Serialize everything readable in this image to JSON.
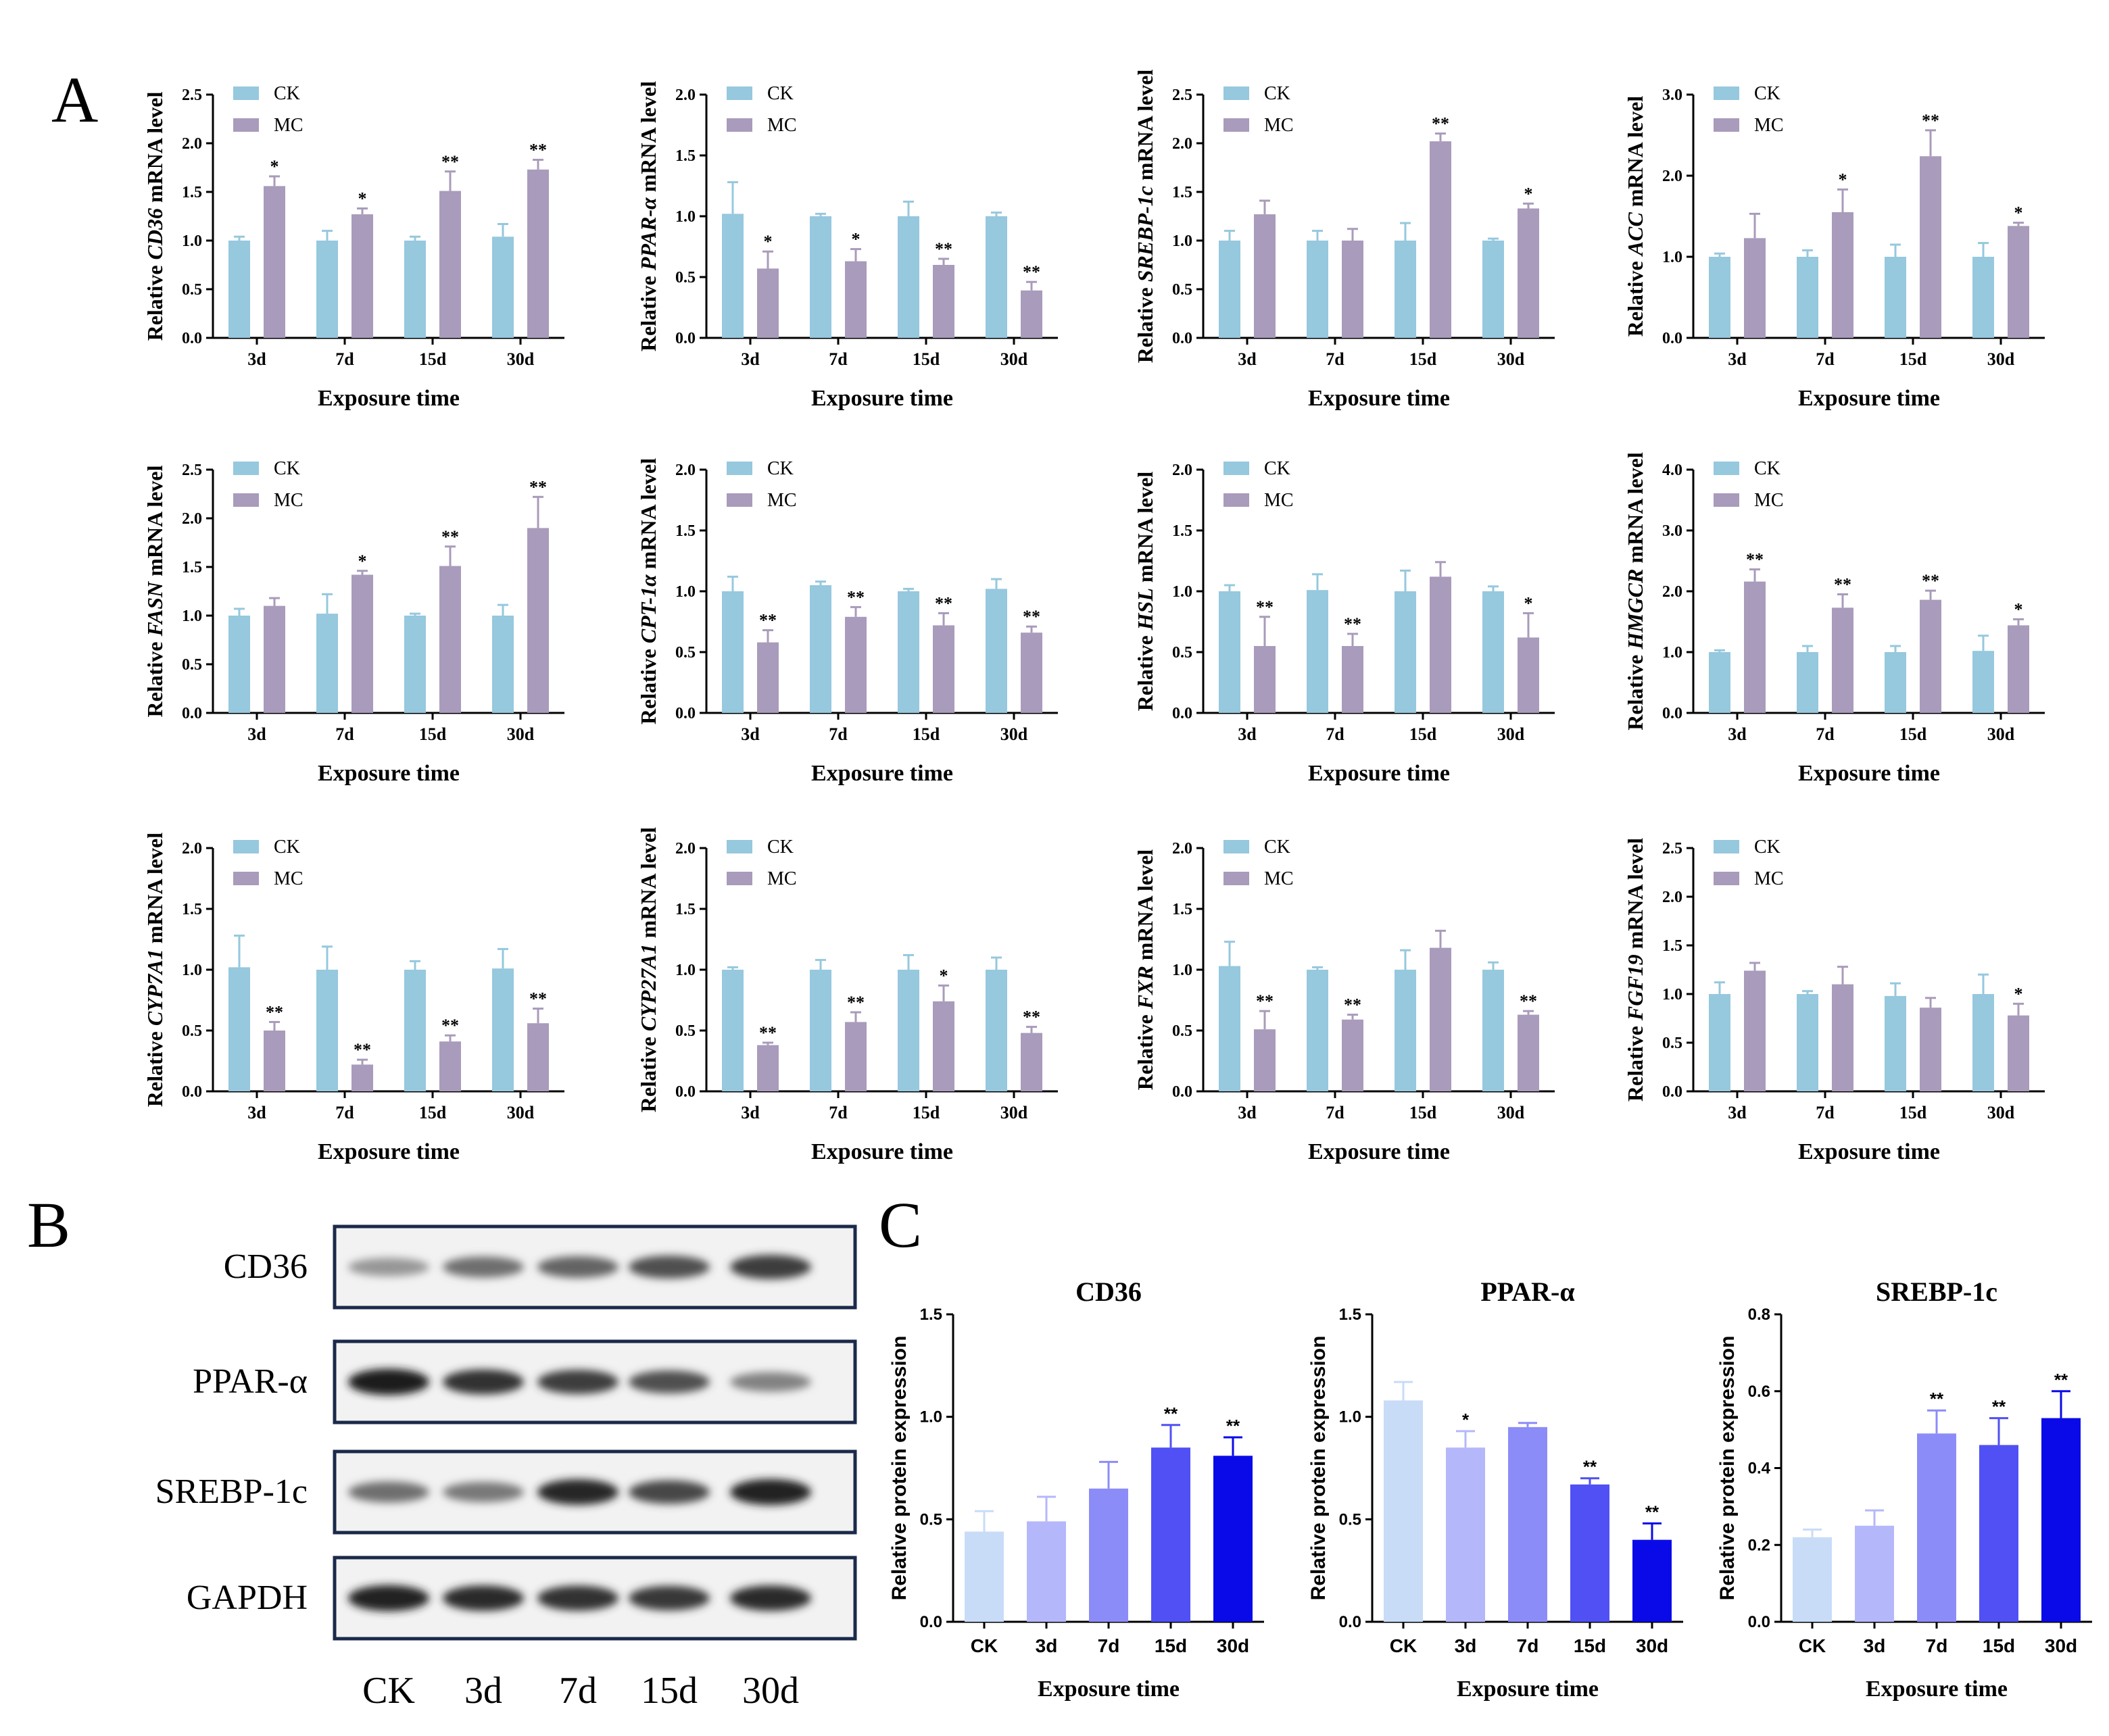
{
  "panel_labels": {
    "a": "A",
    "b": "B",
    "c": "C"
  },
  "colors": {
    "ck": "#96c8de",
    "mc": "#a99bbb",
    "axis": "#000000"
  },
  "common": {
    "xlabel": "Exposure time",
    "legend": [
      "CK",
      "MC"
    ],
    "ylabel_prefix": "Relative ",
    "ylabel_suffix": " mRNA level"
  },
  "chart_data": [
    {
      "type": "bar",
      "gene": "CD36",
      "categories": [
        "3d",
        "7d",
        "15d",
        "30d"
      ],
      "ylim": [
        0,
        2.5
      ],
      "ticks": [
        "0.0",
        "0.5",
        "1.0",
        "1.5",
        "2.0",
        "2.5"
      ],
      "series": [
        {
          "name": "CK",
          "values": [
            1.0,
            1.0,
            1.0,
            1.04
          ],
          "errors": [
            0.04,
            0.1,
            0.04,
            0.13
          ]
        },
        {
          "name": "MC",
          "values": [
            1.56,
            1.27,
            1.51,
            1.73
          ],
          "errors": [
            0.1,
            0.06,
            0.2,
            0.1
          ]
        }
      ],
      "annotations": [
        "*",
        "*",
        "**",
        "**"
      ]
    },
    {
      "type": "bar",
      "gene": "PPAR-α",
      "categories": [
        "3d",
        "7d",
        "15d",
        "30d"
      ],
      "ylim": [
        0,
        2.0
      ],
      "ticks": [
        "0.0",
        "0.5",
        "1.0",
        "1.5",
        "2.0"
      ],
      "series": [
        {
          "name": "CK",
          "values": [
            1.02,
            1.0,
            1.0,
            1.0
          ],
          "errors": [
            0.26,
            0.02,
            0.12,
            0.03
          ]
        },
        {
          "name": "MC",
          "values": [
            0.57,
            0.63,
            0.6,
            0.39
          ],
          "errors": [
            0.14,
            0.1,
            0.05,
            0.07
          ]
        }
      ],
      "annotations": [
        "*",
        "*",
        "**",
        "**"
      ]
    },
    {
      "type": "bar",
      "gene": "SREBP-1c",
      "categories": [
        "3d",
        "7d",
        "15d",
        "30d"
      ],
      "ylim": [
        0,
        2.5
      ],
      "ticks": [
        "0.0",
        "0.5",
        "1.0",
        "1.5",
        "2.0",
        "2.5"
      ],
      "series": [
        {
          "name": "CK",
          "values": [
            1.0,
            1.0,
            1.0,
            1.0
          ],
          "errors": [
            0.1,
            0.1,
            0.18,
            0.02
          ]
        },
        {
          "name": "MC",
          "values": [
            1.27,
            1.0,
            2.02,
            1.33
          ],
          "errors": [
            0.14,
            0.12,
            0.08,
            0.05
          ]
        }
      ],
      "annotations": [
        "",
        "",
        "**",
        "*"
      ]
    },
    {
      "type": "bar",
      "gene": "ACC",
      "categories": [
        "3d",
        "7d",
        "15d",
        "30d"
      ],
      "ylim": [
        0,
        3.0
      ],
      "ticks": [
        "0.0",
        "1.0",
        "2.0",
        "3.0"
      ],
      "series": [
        {
          "name": "CK",
          "values": [
            1.0,
            1.0,
            1.0,
            1.0
          ],
          "errors": [
            0.04,
            0.08,
            0.15,
            0.17
          ]
        },
        {
          "name": "MC",
          "values": [
            1.23,
            1.55,
            2.24,
            1.38
          ],
          "errors": [
            0.3,
            0.28,
            0.32,
            0.04
          ]
        }
      ],
      "annotations": [
        "",
        "*",
        "**",
        "*"
      ]
    },
    {
      "type": "bar",
      "gene": "FASN",
      "categories": [
        "3d",
        "7d",
        "15d",
        "30d"
      ],
      "ylim": [
        0,
        2.5
      ],
      "ticks": [
        "0.0",
        "0.5",
        "1.0",
        "1.5",
        "2.0",
        "2.5"
      ],
      "series": [
        {
          "name": "CK",
          "values": [
            1.0,
            1.02,
            1.0,
            1.0
          ],
          "errors": [
            0.07,
            0.2,
            0.02,
            0.11
          ]
        },
        {
          "name": "MC",
          "values": [
            1.1,
            1.42,
            1.51,
            1.9
          ],
          "errors": [
            0.08,
            0.04,
            0.2,
            0.32
          ]
        }
      ],
      "annotations": [
        "",
        "*",
        "**",
        "**"
      ]
    },
    {
      "type": "bar",
      "gene": "CPT-1α",
      "categories": [
        "3d",
        "7d",
        "15d",
        "30d"
      ],
      "ylim": [
        0,
        2.0
      ],
      "ticks": [
        "0.0",
        "0.5",
        "1.0",
        "1.5",
        "2.0"
      ],
      "series": [
        {
          "name": "CK",
          "values": [
            1.0,
            1.05,
            1.0,
            1.02
          ],
          "errors": [
            0.12,
            0.03,
            0.02,
            0.08
          ]
        },
        {
          "name": "MC",
          "values": [
            0.58,
            0.79,
            0.72,
            0.66
          ],
          "errors": [
            0.1,
            0.08,
            0.1,
            0.05
          ]
        }
      ],
      "annotations": [
        "**",
        "**",
        "**",
        "**"
      ]
    },
    {
      "type": "bar",
      "gene": "HSL",
      "categories": [
        "3d",
        "7d",
        "15d",
        "30d"
      ],
      "ylim": [
        0,
        2.0
      ],
      "ticks": [
        "0.0",
        "0.5",
        "1.0",
        "1.5",
        "2.0"
      ],
      "series": [
        {
          "name": "CK",
          "values": [
            1.0,
            1.01,
            1.0,
            1.0
          ],
          "errors": [
            0.05,
            0.13,
            0.17,
            0.04
          ]
        },
        {
          "name": "MC",
          "values": [
            0.55,
            0.55,
            1.12,
            0.62
          ],
          "errors": [
            0.24,
            0.1,
            0.12,
            0.2
          ]
        }
      ],
      "annotations": [
        "**",
        "**",
        "",
        "*"
      ]
    },
    {
      "type": "bar",
      "gene": "HMGCR",
      "categories": [
        "3d",
        "7d",
        "15d",
        "30d"
      ],
      "ylim": [
        0,
        4.0
      ],
      "ticks": [
        "0.0",
        "1.0",
        "2.0",
        "3.0",
        "4.0"
      ],
      "series": [
        {
          "name": "CK",
          "values": [
            1.0,
            1.0,
            1.0,
            1.02
          ],
          "errors": [
            0.03,
            0.1,
            0.1,
            0.25
          ]
        },
        {
          "name": "MC",
          "values": [
            2.16,
            1.73,
            1.86,
            1.44
          ],
          "errors": [
            0.2,
            0.22,
            0.15,
            0.1
          ]
        }
      ],
      "annotations": [
        "**",
        "**",
        "**",
        "*"
      ]
    },
    {
      "type": "bar",
      "gene": "CYP7A1",
      "categories": [
        "3d",
        "7d",
        "15d",
        "30d"
      ],
      "ylim": [
        0,
        2.0
      ],
      "ticks": [
        "0.0",
        "0.5",
        "1.0",
        "1.5",
        "2.0"
      ],
      "series": [
        {
          "name": "CK",
          "values": [
            1.02,
            1.0,
            1.0,
            1.01
          ],
          "errors": [
            0.26,
            0.19,
            0.07,
            0.16
          ]
        },
        {
          "name": "MC",
          "values": [
            0.5,
            0.22,
            0.41,
            0.56
          ],
          "errors": [
            0.07,
            0.04,
            0.05,
            0.12
          ]
        }
      ],
      "annotations": [
        "**",
        "**",
        "**",
        "**"
      ]
    },
    {
      "type": "bar",
      "gene": "CYP27A1",
      "categories": [
        "3d",
        "7d",
        "15d",
        "30d"
      ],
      "ylim": [
        0,
        2.0
      ],
      "ticks": [
        "0.0",
        "0.5",
        "1.0",
        "1.5",
        "2.0"
      ],
      "series": [
        {
          "name": "CK",
          "values": [
            1.0,
            1.0,
            1.0,
            1.0
          ],
          "errors": [
            0.02,
            0.08,
            0.12,
            0.1
          ]
        },
        {
          "name": "MC",
          "values": [
            0.38,
            0.57,
            0.74,
            0.48
          ],
          "errors": [
            0.02,
            0.08,
            0.13,
            0.05
          ]
        }
      ],
      "annotations": [
        "**",
        "**",
        "*",
        "**"
      ]
    },
    {
      "type": "bar",
      "gene": "FXR",
      "categories": [
        "3d",
        "7d",
        "15d",
        "30d"
      ],
      "ylim": [
        0,
        2.0
      ],
      "ticks": [
        "0.0",
        "0.5",
        "1.0",
        "1.5",
        "2.0"
      ],
      "series": [
        {
          "name": "CK",
          "values": [
            1.03,
            1.0,
            1.0,
            1.0
          ],
          "errors": [
            0.2,
            0.02,
            0.16,
            0.06
          ]
        },
        {
          "name": "MC",
          "values": [
            0.51,
            0.59,
            1.18,
            0.63
          ],
          "errors": [
            0.15,
            0.04,
            0.14,
            0.03
          ]
        }
      ],
      "annotations": [
        "**",
        "**",
        "",
        "**"
      ]
    },
    {
      "type": "bar",
      "gene": "FGF19",
      "categories": [
        "3d",
        "7d",
        "15d",
        "30d"
      ],
      "ylim": [
        0,
        2.5
      ],
      "ticks": [
        "0.0",
        "0.5",
        "1.0",
        "1.5",
        "2.0",
        "2.5"
      ],
      "series": [
        {
          "name": "CK",
          "values": [
            1.0,
            1.0,
            0.98,
            1.0
          ],
          "errors": [
            0.12,
            0.03,
            0.13,
            0.2
          ]
        },
        {
          "name": "MC",
          "values": [
            1.24,
            1.1,
            0.86,
            0.78
          ],
          "errors": [
            0.08,
            0.18,
            0.1,
            0.12
          ]
        }
      ],
      "annotations": [
        "",
        "",
        "",
        "*"
      ]
    },
    {
      "type": "bar",
      "title": "CD36",
      "xlabel": "Exposure time",
      "ylabel": "Relative protein expression",
      "categories": [
        "CK",
        "3d",
        "7d",
        "15d",
        "30d"
      ],
      "ylim": [
        0,
        1.5
      ],
      "ticks": [
        "0.0",
        "0.5",
        "1.0",
        "1.5"
      ],
      "values": [
        0.44,
        0.49,
        0.65,
        0.85,
        0.81
      ],
      "errors": [
        0.1,
        0.12,
        0.13,
        0.11,
        0.09
      ],
      "annotations": [
        "",
        "",
        "",
        "**",
        "**"
      ],
      "colors": [
        "#c8dcf8",
        "#b4b8fa",
        "#8c8cf8",
        "#5050f4",
        "#0a0ae8"
      ]
    },
    {
      "type": "bar",
      "title": "PPAR-α",
      "xlabel": "Exposure time",
      "ylabel": "Relative protein expression",
      "categories": [
        "CK",
        "3d",
        "7d",
        "15d",
        "30d"
      ],
      "ylim": [
        0,
        1.5
      ],
      "ticks": [
        "0.0",
        "0.5",
        "1.0",
        "1.5"
      ],
      "values": [
        1.08,
        0.85,
        0.95,
        0.67,
        0.4
      ],
      "errors": [
        0.09,
        0.08,
        0.02,
        0.03,
        0.08
      ],
      "annotations": [
        "",
        "*",
        "",
        "**",
        "**"
      ],
      "colors": [
        "#c8dcf8",
        "#b4b8fa",
        "#8c8cf8",
        "#5050f4",
        "#0a0ae8"
      ]
    },
    {
      "type": "bar",
      "title": "SREBP-1c",
      "xlabel": "Exposure time",
      "ylabel": "Relative protein expression",
      "categories": [
        "CK",
        "3d",
        "7d",
        "15d",
        "30d"
      ],
      "ylim": [
        0,
        0.8
      ],
      "ticks": [
        "0.0",
        "0.2",
        "0.4",
        "0.6",
        "0.8"
      ],
      "values": [
        0.22,
        0.25,
        0.49,
        0.46,
        0.53
      ],
      "errors": [
        0.02,
        0.04,
        0.06,
        0.07,
        0.07
      ],
      "annotations": [
        "",
        "",
        "**",
        "**",
        "**"
      ],
      "colors": [
        "#c8dcf8",
        "#b4b8fa",
        "#8c8cf8",
        "#5050f4",
        "#0a0ae8"
      ]
    }
  ],
  "western_blot": {
    "rows": [
      {
        "label": "CD36",
        "intensity": [
          0.35,
          0.55,
          0.6,
          0.7,
          0.8
        ]
      },
      {
        "label": "PPAR-α",
        "intensity": [
          0.95,
          0.85,
          0.8,
          0.7,
          0.45
        ]
      },
      {
        "label": "SREBP-1c",
        "intensity": [
          0.55,
          0.5,
          0.9,
          0.75,
          0.92
        ]
      },
      {
        "label": "GAPDH",
        "intensity": [
          0.92,
          0.88,
          0.86,
          0.82,
          0.88
        ]
      }
    ],
    "lanes": [
      "CK",
      "3d",
      "7d",
      "15d",
      "30d"
    ]
  }
}
